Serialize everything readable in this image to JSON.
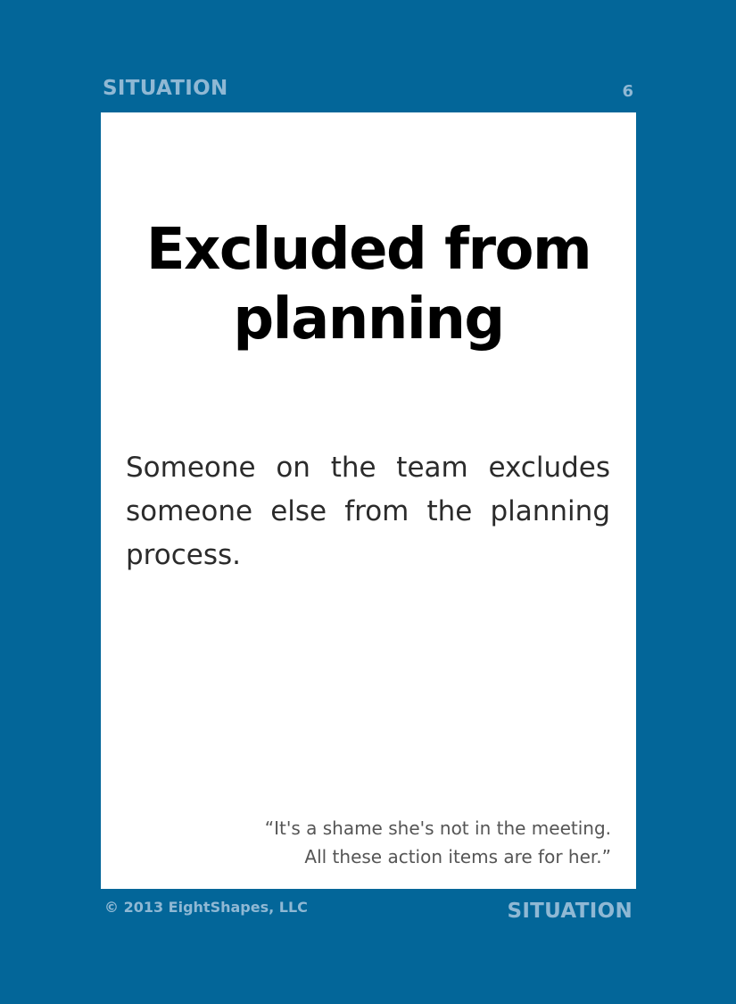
{
  "card": {
    "category": "SITUATION",
    "number": "6",
    "title": "Excluded from planning",
    "description": "Someone on the team excludes someone else from the planning process.",
    "quote_line1": "“It's a shame she's not in the meeting.",
    "quote_line2": "All these action items are for her.”",
    "copyright": "© 2013 EightShapes, LLC",
    "category_bottom": "SITUATION"
  },
  "colors": {
    "background": "#036699",
    "panel": "#ffffff",
    "label": "#8fb8d4"
  }
}
